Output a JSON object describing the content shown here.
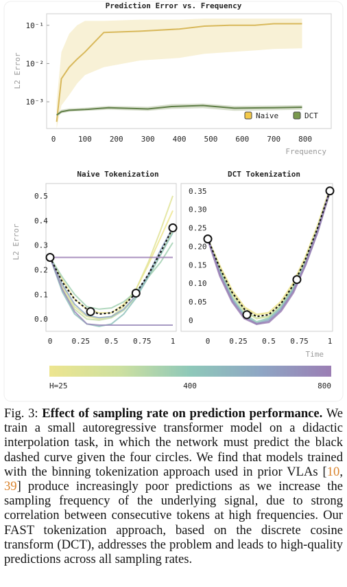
{
  "colors": {
    "naive": "#d8b85a",
    "naive_band": "#f6ecc8",
    "dct": "#5e7d45",
    "dct_band": "#d4dcc8",
    "frame": "#cccccc",
    "axis_label": "#9a9a9a",
    "ref": "#d9822b",
    "colorbar_stops": [
      "#ede58f",
      "#cde0a0",
      "#8ec8b9",
      "#8ea6c4",
      "#9b7eb4"
    ]
  },
  "chart_data": [
    {
      "id": "freq",
      "type": "line",
      "title": "Prediction Error vs. Frequency",
      "xlabel": "Frequency",
      "ylabel": "L2 Error",
      "yscale": "log",
      "xlim": [
        0,
        850
      ],
      "ylim": [
        0.0002,
        0.2
      ],
      "xticks": [
        "0",
        "100",
        "200",
        "300",
        "400",
        "500",
        "600",
        "700",
        "800"
      ],
      "yticks": [
        "10⁻³",
        "10⁻²",
        "10⁻¹"
      ],
      "legend": "bottom-right",
      "series": [
        {
          "name": "Naive",
          "x": [
            10,
            25,
            50,
            75,
            100,
            160,
            275,
            400,
            480,
            560,
            640,
            700,
            790
          ],
          "values": [
            0.0003,
            0.004,
            0.008,
            0.013,
            0.02,
            0.065,
            0.07,
            0.08,
            0.095,
            0.1,
            0.1,
            0.11,
            0.11
          ],
          "band_lo": [
            0.0002,
            0.0008,
            0.0015,
            0.003,
            0.005,
            0.008,
            0.012,
            0.014,
            0.018,
            0.02,
            0.022,
            0.024,
            0.025
          ],
          "band_hi": [
            0.001,
            0.02,
            0.06,
            0.1,
            0.13,
            0.13,
            0.14,
            0.14,
            0.15,
            0.15,
            0.15,
            0.15,
            0.15
          ]
        },
        {
          "name": "DCT",
          "x": [
            10,
            25,
            50,
            100,
            175,
            300,
            375,
            475,
            575,
            700,
            790
          ],
          "values": [
            0.00045,
            0.00055,
            0.0006,
            0.00063,
            0.0007,
            0.00065,
            0.00075,
            0.0008,
            0.00068,
            0.0007,
            0.00072
          ],
          "band_lo": [
            0.0004,
            0.0005,
            0.00055,
            0.00058,
            0.00062,
            0.00058,
            0.00065,
            0.00068,
            0.00058,
            0.0006,
            0.00062
          ],
          "band_hi": [
            0.0005,
            0.00062,
            0.00067,
            0.0007,
            0.00078,
            0.00074,
            0.00087,
            0.0009,
            0.00078,
            0.0008,
            0.00082
          ]
        }
      ]
    },
    {
      "id": "naive",
      "type": "line",
      "title": "Naive Tokenization",
      "ylabel": "L2 Error",
      "xlim": [
        0,
        1
      ],
      "ylim": [
        -0.05,
        0.55
      ],
      "xticks": [
        "0",
        "0.25",
        "0.5",
        "0.75",
        "1"
      ],
      "yticks": [
        "0.0",
        "0.1",
        "0.2",
        "0.3",
        "0.4",
        "0.5"
      ],
      "points": {
        "x": [
          0,
          0.33,
          0.7,
          1.0
        ],
        "y": [
          0.25,
          0.03,
          0.105,
          0.37
        ]
      },
      "target": {
        "x": [
          0,
          0.1,
          0.2,
          0.3,
          0.4,
          0.5,
          0.6,
          0.7,
          0.8,
          0.9,
          1.0
        ],
        "y": [
          0.25,
          0.15,
          0.08,
          0.04,
          0.02,
          0.025,
          0.055,
          0.105,
          0.18,
          0.27,
          0.37
        ]
      },
      "series": [
        {
          "H": 25,
          "x": [
            0,
            0.1,
            0.2,
            0.3,
            0.4,
            0.5,
            0.6,
            0.7,
            0.8,
            0.9,
            1.0
          ],
          "y": [
            0.25,
            0.16,
            0.08,
            0.04,
            0.025,
            0.025,
            0.06,
            0.12,
            0.22,
            0.33,
            0.44
          ]
        },
        {
          "H": 100,
          "x": [
            0,
            0.1,
            0.2,
            0.3,
            0.4,
            0.5,
            0.6,
            0.7,
            0.8,
            0.9,
            1.0
          ],
          "y": [
            0.25,
            0.13,
            0.05,
            0.01,
            0.0,
            0.01,
            0.05,
            0.12,
            0.23,
            0.36,
            0.5
          ]
        },
        {
          "H": 250,
          "x": [
            0,
            0.1,
            0.2,
            0.3,
            0.4,
            0.5,
            0.6,
            0.7,
            0.8,
            0.9,
            1.0
          ],
          "y": [
            0.25,
            0.12,
            0.04,
            0.0,
            -0.005,
            0.005,
            0.035,
            0.09,
            0.17,
            0.26,
            0.36
          ]
        },
        {
          "H": 350,
          "x": [
            0,
            0.1,
            0.2,
            0.3,
            0.4,
            0.5,
            0.6,
            0.7,
            0.8,
            0.9,
            1.0
          ],
          "y": [
            0.25,
            0.17,
            0.1,
            0.05,
            0.04,
            0.045,
            0.07,
            0.11,
            0.17,
            0.23,
            0.31
          ]
        },
        {
          "H": 450,
          "x": [
            0,
            0.1,
            0.2,
            0.3,
            0.4,
            0.5,
            0.6,
            0.7,
            0.8,
            0.9,
            1.0
          ],
          "y": [
            0.25,
            0.11,
            0.02,
            -0.02,
            -0.03,
            -0.02,
            0.02,
            0.085,
            0.17,
            0.26,
            0.35
          ]
        },
        {
          "H": 600,
          "x": [
            0,
            0.1,
            0.2,
            0.3,
            0.4,
            0.5,
            0.6,
            0.7,
            0.8,
            0.9,
            1.0
          ],
          "y": [
            0.25,
            0.14,
            0.06,
            0.015,
            0.005,
            0.01,
            0.04,
            0.095,
            0.18,
            0.28,
            0.37
          ]
        },
        {
          "H": 750,
          "x": [
            0,
            0.1,
            0.2,
            0.3,
            0.4,
            0.5,
            0.6,
            0.7,
            0.8,
            0.9,
            1.0
          ],
          "y": [
            0.25,
            0.12,
            0.03,
            -0.02,
            -0.025,
            -0.025,
            -0.025,
            -0.025,
            -0.025,
            -0.025,
            -0.025
          ]
        },
        {
          "H": 800,
          "x": [
            0,
            0.1,
            0.2,
            0.3,
            0.4,
            0.5,
            0.6,
            0.7,
            0.8,
            0.9,
            1.0
          ],
          "y": [
            0.25,
            0.25,
            0.25,
            0.25,
            0.25,
            0.25,
            0.25,
            0.25,
            0.25,
            0.25,
            0.25
          ]
        }
      ]
    },
    {
      "id": "dct",
      "type": "line",
      "title": "DCT Tokenization",
      "xlabel": "Time",
      "xlim": [
        0,
        1
      ],
      "ylim": [
        -0.03,
        0.37
      ],
      "xticks": [
        "0",
        "0.25",
        "0.5",
        "0.75",
        "1"
      ],
      "yticks": [
        "0",
        "0.05",
        "0.10",
        "0.15",
        "0.20",
        "0.25",
        "0.30",
        "0.35"
      ],
      "points": {
        "x": [
          0,
          0.32,
          0.73,
          1.0
        ],
        "y": [
          0.22,
          0.015,
          0.11,
          0.35
        ]
      },
      "target": {
        "x": [
          0,
          0.1,
          0.2,
          0.3,
          0.4,
          0.5,
          0.6,
          0.7,
          0.8,
          0.9,
          1.0
        ],
        "y": [
          0.22,
          0.14,
          0.075,
          0.03,
          0.01,
          0.015,
          0.045,
          0.095,
          0.165,
          0.25,
          0.35
        ]
      },
      "series": [
        {
          "H": 25,
          "x": [
            0,
            0.1,
            0.2,
            0.3,
            0.4,
            0.5,
            0.6,
            0.7,
            0.8,
            0.9,
            1.0
          ],
          "y": [
            0.22,
            0.145,
            0.08,
            0.035,
            0.015,
            0.02,
            0.05,
            0.1,
            0.17,
            0.255,
            0.355
          ]
        },
        {
          "H": 200,
          "x": [
            0,
            0.1,
            0.2,
            0.3,
            0.4,
            0.5,
            0.6,
            0.7,
            0.8,
            0.9,
            1.0
          ],
          "y": [
            0.22,
            0.135,
            0.07,
            0.025,
            0.005,
            0.01,
            0.04,
            0.09,
            0.16,
            0.245,
            0.345
          ]
        },
        {
          "H": 400,
          "x": [
            0,
            0.1,
            0.2,
            0.3,
            0.4,
            0.5,
            0.6,
            0.7,
            0.8,
            0.9,
            1.0
          ],
          "y": [
            0.22,
            0.13,
            0.06,
            0.015,
            -0.005,
            0.005,
            0.035,
            0.085,
            0.155,
            0.245,
            0.35
          ]
        },
        {
          "H": 600,
          "x": [
            0,
            0.1,
            0.2,
            0.3,
            0.4,
            0.5,
            0.6,
            0.7,
            0.8,
            0.9,
            1.0
          ],
          "y": [
            0.22,
            0.125,
            0.055,
            0.01,
            -0.01,
            0.0,
            0.03,
            0.08,
            0.15,
            0.24,
            0.35
          ]
        },
        {
          "H": 800,
          "x": [
            0,
            0.1,
            0.2,
            0.3,
            0.4,
            0.5,
            0.6,
            0.7,
            0.8,
            0.9,
            1.0
          ],
          "y": [
            0.22,
            0.12,
            0.05,
            0.005,
            -0.01,
            -0.005,
            0.025,
            0.075,
            0.15,
            0.24,
            0.35
          ]
        }
      ]
    }
  ],
  "colorbar": {
    "labels": [
      "H=25",
      "400",
      "800"
    ]
  },
  "caption": {
    "label": "Fig. 3:",
    "title": "Effect of sampling rate on prediction performance.",
    "body_1": "We train a small autoregressive transformer model on a didactic interpolation task, in which the network must predict the black dashed curve given the four circles. We find that models trained with the binning tokenization approach used in prior VLAs [",
    "ref_1": "10",
    "ref_sep": ", ",
    "ref_2": "39",
    "body_2": "] produce increasingly poor predictions as we increase the sampling frequency of the underlying signal, due to strong correlation between consecutive tokens at high frequencies. Our FAST tokenization approach, based on the discrete cosine transform (DCT), addresses the problem and leads to high-quality predictions across all sampling rates."
  }
}
